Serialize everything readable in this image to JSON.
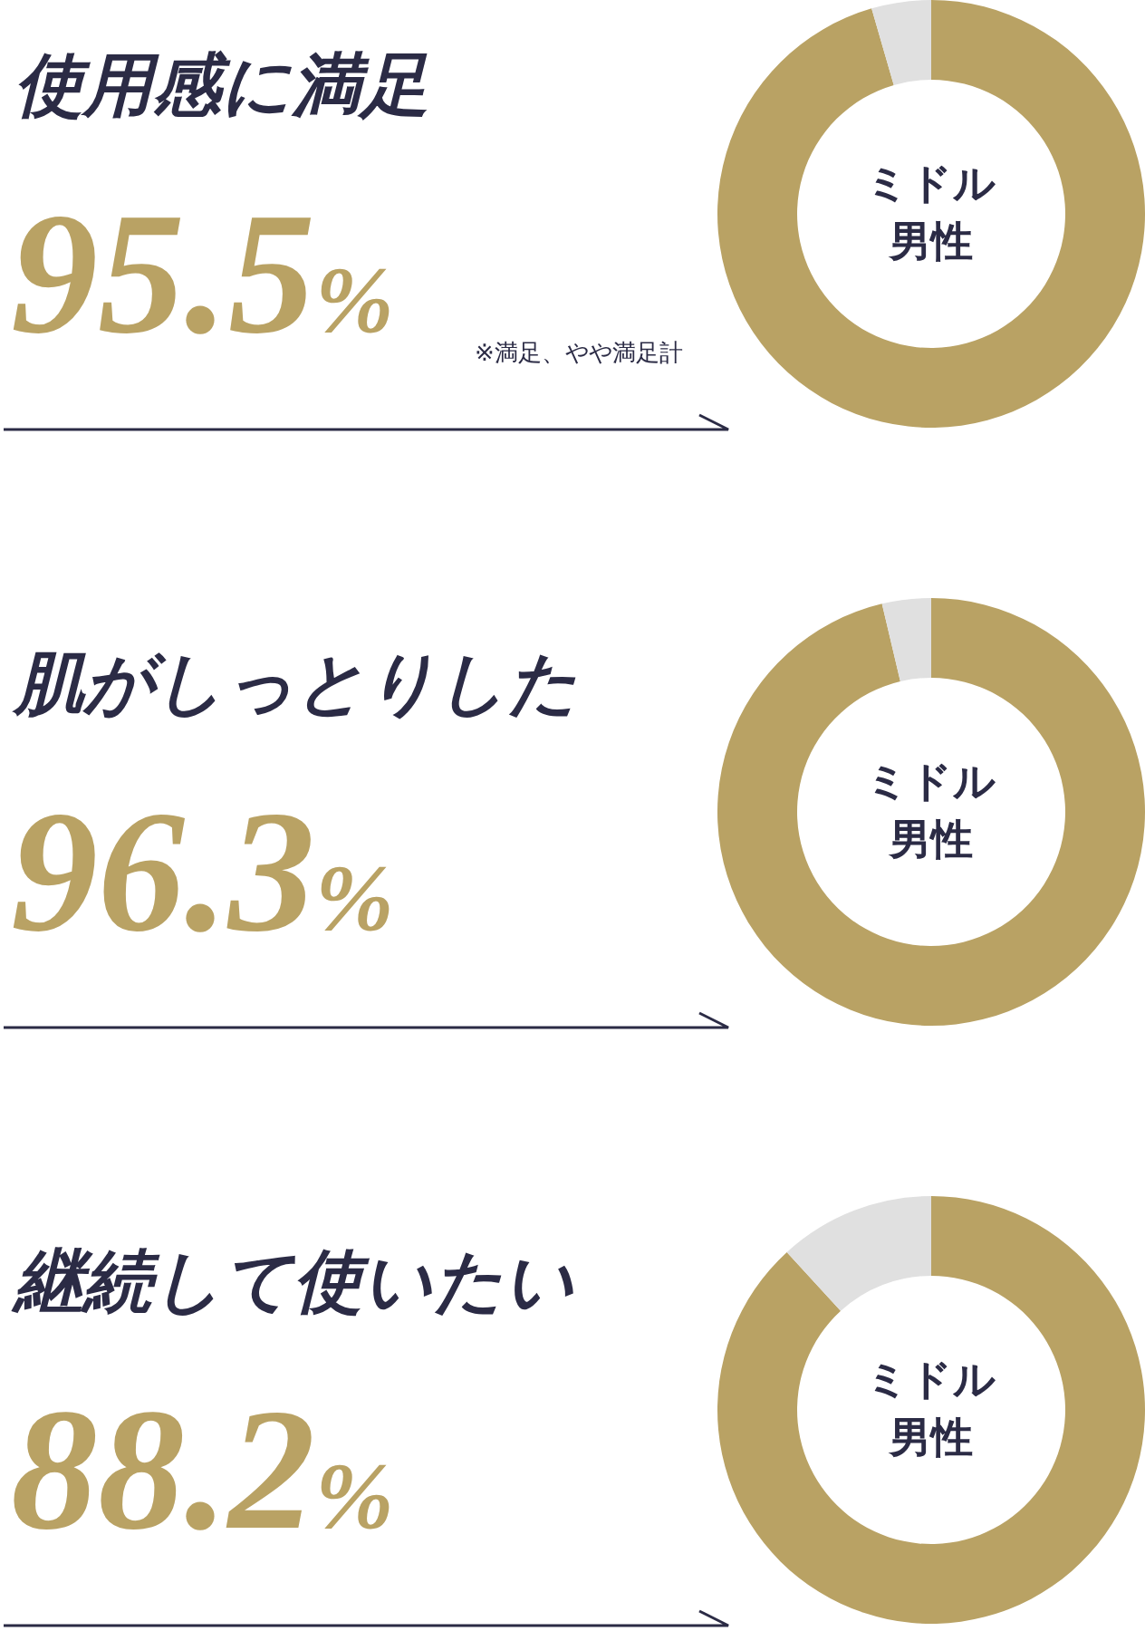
{
  "chart_data": [
    {
      "type": "donut",
      "title": "使用感に満足",
      "subtitle": "ミドル男性",
      "categories": [
        null,
        null
      ],
      "values": [
        95.5,
        4.5
      ],
      "colors": [
        "#b9a264",
        "#e0e0e0"
      ],
      "value_labels": [
        "95.5%",
        null
      ],
      "annotations": [
        "※満足、やや満足計"
      ]
    },
    {
      "type": "donut",
      "title": "肌がしっとりした",
      "subtitle": "ミドル男性",
      "categories": [
        null,
        null
      ],
      "values": [
        96.3,
        3.7
      ],
      "colors": [
        "#b9a264",
        "#e0e0e0"
      ],
      "value_labels": [
        "96.3%",
        null
      ]
    },
    {
      "type": "donut",
      "title": "継続して使いたい",
      "subtitle": "ミドル男性",
      "categories": [
        null,
        null
      ],
      "values": [
        88.2,
        11.8
      ],
      "colors": [
        "#b9a264",
        "#e0e0e0"
      ],
      "value_labels": [
        "88.2%",
        null
      ]
    }
  ]
}
